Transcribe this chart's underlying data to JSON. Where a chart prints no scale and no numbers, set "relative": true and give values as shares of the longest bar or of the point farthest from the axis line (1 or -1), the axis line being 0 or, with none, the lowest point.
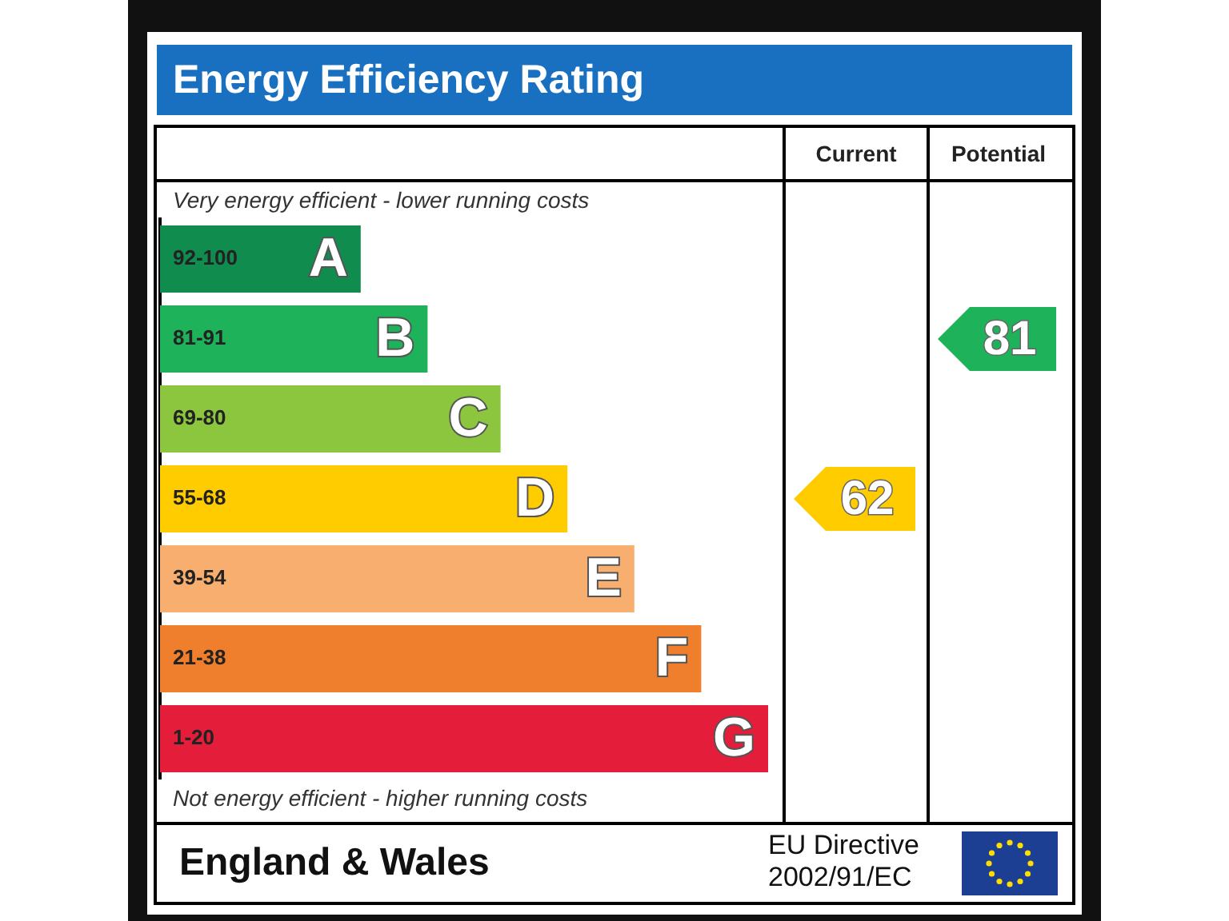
{
  "chart_data": {
    "type": "bar",
    "orientation": "horizontal",
    "relative": true,
    "legend": false,
    "title": "Energy Efficiency Rating",
    "categories": [
      "92-100",
      "81-91",
      "69-80",
      "55-68",
      "39-54",
      "21-38",
      "1-20"
    ],
    "values": [
      0.33,
      0.44,
      0.56,
      0.67,
      0.78,
      0.89,
      1
    ],
    "colors": [
      "#108c4f",
      "#1eb25a",
      "#8cc63f",
      "#ffcc00",
      "#f7ae6e",
      "#ef7e2d",
      "#e41d3b"
    ],
    "annotations": [
      "Very energy efficient - lower running costs",
      "Not energy efficient - higher running costs",
      "Current",
      "Potential",
      "England & Wales",
      "EU Directive 2002/91/EC",
      {
        "text": "A",
        "y": "92-100"
      },
      {
        "text": "B",
        "y": "81-91"
      },
      {
        "text": "C",
        "y": "69-80"
      },
      {
        "text": "D",
        "y": "55-68"
      },
      {
        "text": "E",
        "y": "39-54"
      },
      {
        "text": "F",
        "y": "21-38"
      },
      {
        "text": "G",
        "y": "1-20"
      },
      "62",
      "81"
    ]
  }
}
